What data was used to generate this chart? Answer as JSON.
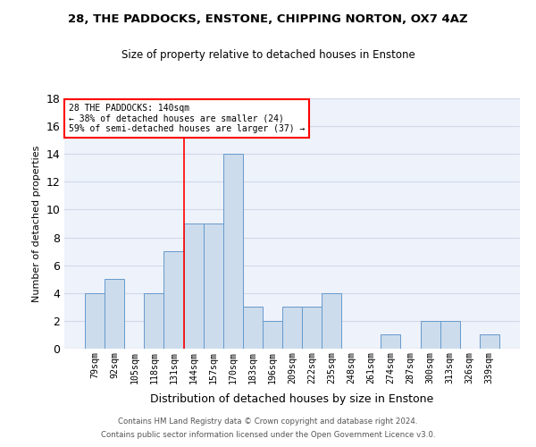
{
  "title1": "28, THE PADDOCKS, ENSTONE, CHIPPING NORTON, OX7 4AZ",
  "title2": "Size of property relative to detached houses in Enstone",
  "xlabel": "Distribution of detached houses by size in Enstone",
  "ylabel": "Number of detached properties",
  "categories": [
    "79sqm",
    "92sqm",
    "105sqm",
    "118sqm",
    "131sqm",
    "144sqm",
    "157sqm",
    "170sqm",
    "183sqm",
    "196sqm",
    "209sqm",
    "222sqm",
    "235sqm",
    "248sqm",
    "261sqm",
    "274sqm",
    "287sqm",
    "300sqm",
    "313sqm",
    "326sqm",
    "339sqm"
  ],
  "values": [
    4,
    5,
    0,
    4,
    7,
    9,
    9,
    14,
    3,
    2,
    3,
    3,
    4,
    0,
    0,
    1,
    0,
    2,
    2,
    0,
    1
  ],
  "bar_color": "#ccdcec",
  "bar_edge_color": "#6699cc",
  "grid_color": "#d0d8e8",
  "bg_color": "#eef2fa",
  "annotation_box_text": "28 THE PADDOCKS: 140sqm\n← 38% of detached houses are smaller (24)\n59% of semi-detached houses are larger (37) →",
  "vline_x_index": 4.5,
  "ylim": [
    0,
    18
  ],
  "yticks": [
    0,
    2,
    4,
    6,
    8,
    10,
    12,
    14,
    16,
    18
  ],
  "footer1": "Contains HM Land Registry data © Crown copyright and database right 2024.",
  "footer2": "Contains public sector information licensed under the Open Government Licence v3.0."
}
